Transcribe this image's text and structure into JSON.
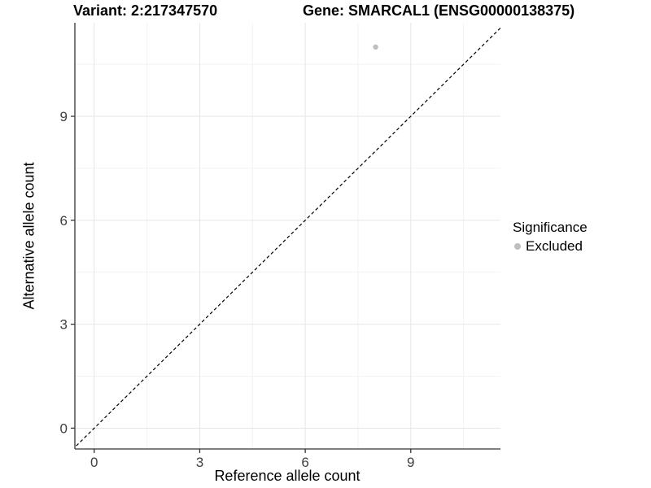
{
  "header": {
    "variant_title": "Variant: 2:217347570",
    "gene_title": "Gene: SMARCAL1 (ENSG00000138375)"
  },
  "chart_data": {
    "type": "scatter",
    "title": "Variant: 2:217347570 | Gene: SMARCAL1 (ENSG00000138375)",
    "xlabel": "Reference allele count",
    "ylabel": "Alternative allele count",
    "xlim": [
      -0.55,
      11.55
    ],
    "ylim": [
      -0.6,
      11.7
    ],
    "x_ticks": [
      0,
      3,
      6,
      9
    ],
    "y_ticks": [
      0,
      3,
      6,
      9
    ],
    "x_minor_ticks": [
      1.5,
      4.5,
      7.5,
      10.5
    ],
    "y_minor_ticks": [
      1.5,
      4.5,
      7.5,
      10.5
    ],
    "grid": true,
    "points": [
      {
        "x": 8,
        "y": 11,
        "series": "Excluded"
      }
    ],
    "reference_line": {
      "slope": 1,
      "intercept": 0,
      "style": "dashed"
    },
    "legend": {
      "title": "Significance",
      "position": "right",
      "entries": [
        {
          "label": "Excluded",
          "color": "#bfbfbf"
        }
      ]
    },
    "colors": {
      "point": "#bfbfbf",
      "grid_major": "#e6e6e6",
      "grid_minor": "#f2f2f2",
      "axis": "#333333",
      "tick_text": "#404040",
      "abline": "#000000"
    }
  }
}
